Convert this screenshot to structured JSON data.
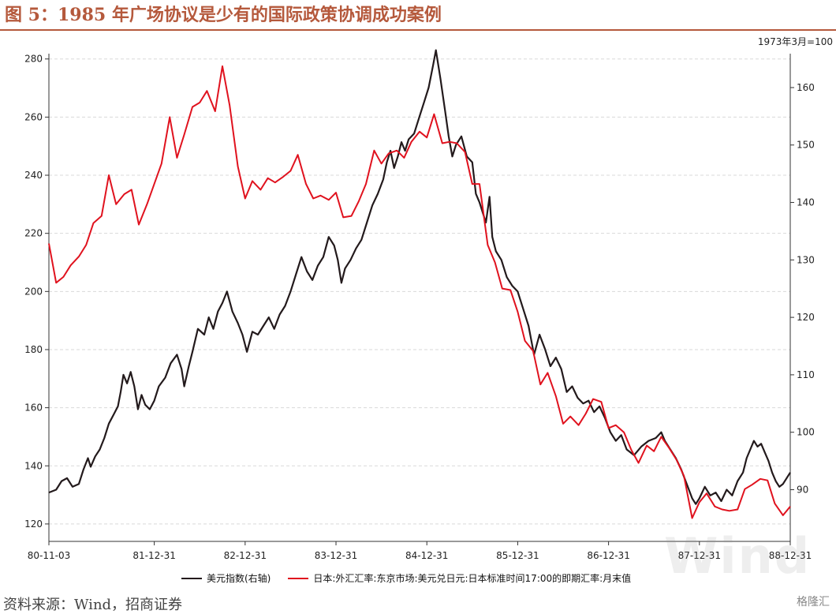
{
  "title": "图 5：1985 年广场协议是少有的国际政策协调成功案例",
  "unit_note": "1973年3月=100",
  "source": "资料来源：Wind，招商证券",
  "watermark": "Wind",
  "watermark_bottom": "格隆汇",
  "colors": {
    "title": "#b5593c",
    "dxy": "#231a1c",
    "jpy": "#e0121e",
    "grid": "#d9d9d9"
  },
  "chart_data": {
    "type": "line",
    "x_ticks": [
      "80-11-03",
      "81-12-31",
      "82-12-31",
      "83-12-31",
      "84-12-31",
      "85-12-31",
      "86-12-31",
      "87-12-31",
      "88-12-31"
    ],
    "x_range": [
      1980.84,
      1989.0
    ],
    "y_left": {
      "ticks": [
        120,
        140,
        160,
        180,
        200,
        220,
        240,
        260,
        280
      ],
      "range": [
        114,
        284
      ]
    },
    "y_right": {
      "ticks": [
        90,
        100,
        110,
        120,
        130,
        140,
        150,
        160
      ],
      "range": [
        81,
        167
      ]
    },
    "grid": true,
    "legend_position": "bottom",
    "series": [
      {
        "name": "美元指数(右轴)",
        "axis": "right",
        "color": "#231a1c",
        "points": [
          [
            1980.84,
            89.5
          ],
          [
            1980.92,
            90.0
          ],
          [
            1980.98,
            91.5
          ],
          [
            1981.04,
            92.0
          ],
          [
            1981.1,
            90.5
          ],
          [
            1981.17,
            91.0
          ],
          [
            1981.22,
            93.5
          ],
          [
            1981.27,
            95.5
          ],
          [
            1981.3,
            94.0
          ],
          [
            1981.35,
            95.8
          ],
          [
            1981.4,
            97.0
          ],
          [
            1981.45,
            99.0
          ],
          [
            1981.5,
            101.5
          ],
          [
            1981.55,
            103.0
          ],
          [
            1981.6,
            104.5
          ],
          [
            1981.63,
            107.0
          ],
          [
            1981.66,
            110.0
          ],
          [
            1981.7,
            108.5
          ],
          [
            1981.74,
            110.5
          ],
          [
            1981.78,
            108.0
          ],
          [
            1981.82,
            104.0
          ],
          [
            1981.86,
            106.5
          ],
          [
            1981.9,
            104.8
          ],
          [
            1981.95,
            104.0
          ],
          [
            1982.0,
            105.5
          ],
          [
            1982.05,
            108.0
          ],
          [
            1982.12,
            109.5
          ],
          [
            1982.18,
            112.0
          ],
          [
            1982.25,
            113.5
          ],
          [
            1982.3,
            111.0
          ],
          [
            1982.33,
            108.0
          ],
          [
            1982.38,
            111.5
          ],
          [
            1982.42,
            114.0
          ],
          [
            1982.48,
            118.0
          ],
          [
            1982.55,
            117.0
          ],
          [
            1982.6,
            120.0
          ],
          [
            1982.65,
            118.0
          ],
          [
            1982.7,
            121.0
          ],
          [
            1982.75,
            122.5
          ],
          [
            1982.8,
            124.5
          ],
          [
            1982.86,
            121.0
          ],
          [
            1982.92,
            119.0
          ],
          [
            1982.97,
            117.0
          ],
          [
            1983.02,
            114.0
          ],
          [
            1983.08,
            117.5
          ],
          [
            1983.14,
            117.0
          ],
          [
            1983.2,
            118.5
          ],
          [
            1983.26,
            120.0
          ],
          [
            1983.32,
            118.0
          ],
          [
            1983.38,
            120.5
          ],
          [
            1983.44,
            122.0
          ],
          [
            1983.5,
            124.5
          ],
          [
            1983.56,
            127.5
          ],
          [
            1983.62,
            130.5
          ],
          [
            1983.68,
            128.0
          ],
          [
            1983.74,
            126.5
          ],
          [
            1983.8,
            129.0
          ],
          [
            1983.86,
            130.5
          ],
          [
            1983.92,
            134.0
          ],
          [
            1983.98,
            132.5
          ],
          [
            1984.02,
            130.0
          ],
          [
            1984.06,
            126.0
          ],
          [
            1984.1,
            128.5
          ],
          [
            1984.16,
            130.0
          ],
          [
            1984.22,
            132.0
          ],
          [
            1984.28,
            133.5
          ],
          [
            1984.34,
            136.5
          ],
          [
            1984.4,
            139.5
          ],
          [
            1984.46,
            141.5
          ],
          [
            1984.52,
            144.0
          ],
          [
            1984.56,
            147.0
          ],
          [
            1984.6,
            149.0
          ],
          [
            1984.64,
            146.0
          ],
          [
            1984.68,
            148.0
          ],
          [
            1984.72,
            150.5
          ],
          [
            1984.76,
            149.0
          ],
          [
            1984.8,
            151.0
          ],
          [
            1984.86,
            152.0
          ],
          [
            1984.92,
            155.0
          ],
          [
            1984.97,
            157.5
          ],
          [
            1985.02,
            160.0
          ],
          [
            1985.07,
            164.0
          ],
          [
            1985.1,
            166.5
          ],
          [
            1985.15,
            161.5
          ],
          [
            1985.2,
            156.0
          ],
          [
            1985.24,
            151.5
          ],
          [
            1985.28,
            148.0
          ],
          [
            1985.32,
            150.0
          ],
          [
            1985.38,
            151.5
          ],
          [
            1985.44,
            148.0
          ],
          [
            1985.5,
            147.0
          ],
          [
            1985.54,
            141.5
          ],
          [
            1985.58,
            140.0
          ],
          [
            1985.62,
            138.0
          ],
          [
            1985.65,
            136.5
          ],
          [
            1985.69,
            141.0
          ],
          [
            1985.72,
            134.0
          ],
          [
            1985.76,
            131.5
          ],
          [
            1985.82,
            130.0
          ],
          [
            1985.88,
            127.0
          ],
          [
            1985.94,
            125.5
          ],
          [
            1986.0,
            124.5
          ],
          [
            1986.06,
            121.5
          ],
          [
            1986.12,
            118.5
          ],
          [
            1986.18,
            113.5
          ],
          [
            1986.24,
            117.0
          ],
          [
            1986.3,
            114.5
          ],
          [
            1986.36,
            111.5
          ],
          [
            1986.42,
            113.0
          ],
          [
            1986.48,
            111.0
          ],
          [
            1986.54,
            107.0
          ],
          [
            1986.6,
            108.0
          ],
          [
            1986.66,
            106.0
          ],
          [
            1986.72,
            105.0
          ],
          [
            1986.78,
            105.5
          ],
          [
            1986.84,
            103.5
          ],
          [
            1986.9,
            104.5
          ],
          [
            1986.96,
            102.5
          ],
          [
            1987.02,
            100.0
          ],
          [
            1987.08,
            98.5
          ],
          [
            1987.14,
            99.5
          ],
          [
            1987.2,
            97.0
          ],
          [
            1987.28,
            96.0
          ],
          [
            1987.36,
            97.5
          ],
          [
            1987.44,
            98.5
          ],
          [
            1987.52,
            99.0
          ],
          [
            1987.58,
            100.0
          ],
          [
            1987.62,
            98.5
          ],
          [
            1987.68,
            97.0
          ],
          [
            1987.74,
            95.5
          ],
          [
            1987.8,
            93.5
          ],
          [
            1987.86,
            91.0
          ],
          [
            1987.92,
            88.5
          ],
          [
            1987.96,
            87.5
          ],
          [
            1988.0,
            88.5
          ],
          [
            1988.06,
            90.5
          ],
          [
            1988.12,
            89.0
          ],
          [
            1988.18,
            89.5
          ],
          [
            1988.24,
            88.0
          ],
          [
            1988.3,
            90.0
          ],
          [
            1988.36,
            89.0
          ],
          [
            1988.42,
            91.5
          ],
          [
            1988.48,
            93.0
          ],
          [
            1988.52,
            95.5
          ],
          [
            1988.56,
            97.0
          ],
          [
            1988.6,
            98.5
          ],
          [
            1988.64,
            97.5
          ],
          [
            1988.68,
            98.0
          ],
          [
            1988.72,
            96.5
          ],
          [
            1988.76,
            95.0
          ],
          [
            1988.8,
            93.0
          ],
          [
            1988.84,
            91.5
          ],
          [
            1988.88,
            90.5
          ],
          [
            1988.92,
            91.0
          ],
          [
            1988.96,
            92.0
          ],
          [
            1989.0,
            93.0
          ]
        ]
      },
      {
        "name": "日本:外汇汇率:东京市场:美元兑日元:日本标准时间17:00的即期汇率:月末值",
        "axis": "left",
        "color": "#e0121e",
        "points": [
          [
            1980.84,
            216.5
          ],
          [
            1980.92,
            203.0
          ],
          [
            1981.0,
            205.0
          ],
          [
            1981.08,
            209.0
          ],
          [
            1981.17,
            212.0
          ],
          [
            1981.25,
            216.0
          ],
          [
            1981.33,
            223.5
          ],
          [
            1981.42,
            226.0
          ],
          [
            1981.5,
            240.0
          ],
          [
            1981.58,
            230.0
          ],
          [
            1981.67,
            233.5
          ],
          [
            1981.75,
            235.0
          ],
          [
            1981.83,
            223.0
          ],
          [
            1981.92,
            230.0
          ],
          [
            1982.0,
            237.0
          ],
          [
            1982.08,
            244.0
          ],
          [
            1982.17,
            260.0
          ],
          [
            1982.25,
            246.0
          ],
          [
            1982.33,
            254.0
          ],
          [
            1982.42,
            263.5
          ],
          [
            1982.5,
            265.0
          ],
          [
            1982.58,
            269.0
          ],
          [
            1982.67,
            262.0
          ],
          [
            1982.75,
            277.5
          ],
          [
            1982.83,
            264.0
          ],
          [
            1982.92,
            243.0
          ],
          [
            1983.0,
            232.0
          ],
          [
            1983.08,
            238.0
          ],
          [
            1983.17,
            235.0
          ],
          [
            1983.25,
            239.0
          ],
          [
            1983.33,
            237.5
          ],
          [
            1983.42,
            239.5
          ],
          [
            1983.5,
            241.5
          ],
          [
            1983.58,
            247.0
          ],
          [
            1983.67,
            237.0
          ],
          [
            1983.75,
            232.0
          ],
          [
            1983.83,
            233.0
          ],
          [
            1983.92,
            231.5
          ],
          [
            1984.0,
            234.0
          ],
          [
            1984.08,
            225.5
          ],
          [
            1984.17,
            226.0
          ],
          [
            1984.25,
            231.0
          ],
          [
            1984.33,
            237.0
          ],
          [
            1984.42,
            248.5
          ],
          [
            1984.5,
            244.0
          ],
          [
            1984.58,
            247.5
          ],
          [
            1984.67,
            248.5
          ],
          [
            1984.75,
            246.0
          ],
          [
            1984.83,
            251.5
          ],
          [
            1984.92,
            255.0
          ],
          [
            1985.0,
            253.0
          ],
          [
            1985.08,
            261.0
          ],
          [
            1985.17,
            251.0
          ],
          [
            1985.25,
            251.5
          ],
          [
            1985.33,
            251.0
          ],
          [
            1985.42,
            248.0
          ],
          [
            1985.5,
            237.0
          ],
          [
            1985.58,
            237.0
          ],
          [
            1985.67,
            216.0
          ],
          [
            1985.75,
            210.0
          ],
          [
            1985.83,
            201.0
          ],
          [
            1985.92,
            200.5
          ],
          [
            1986.0,
            193.0
          ],
          [
            1986.08,
            183.0
          ],
          [
            1986.17,
            179.5
          ],
          [
            1986.25,
            168.0
          ],
          [
            1986.33,
            172.0
          ],
          [
            1986.42,
            164.0
          ],
          [
            1986.5,
            154.5
          ],
          [
            1986.58,
            157.0
          ],
          [
            1986.67,
            154.0
          ],
          [
            1986.75,
            158.0
          ],
          [
            1986.83,
            163.0
          ],
          [
            1986.92,
            162.0
          ],
          [
            1987.0,
            153.0
          ],
          [
            1987.08,
            154.0
          ],
          [
            1987.17,
            151.5
          ],
          [
            1987.25,
            145.5
          ],
          [
            1987.33,
            141.0
          ],
          [
            1987.42,
            147.0
          ],
          [
            1987.5,
            145.0
          ],
          [
            1987.58,
            150.0
          ],
          [
            1987.67,
            146.0
          ],
          [
            1987.75,
            142.0
          ],
          [
            1987.83,
            136.5
          ],
          [
            1987.92,
            122.0
          ],
          [
            1988.0,
            127.5
          ],
          [
            1988.08,
            130.5
          ],
          [
            1988.17,
            126.0
          ],
          [
            1988.25,
            125.0
          ],
          [
            1988.33,
            124.5
          ],
          [
            1988.42,
            125.0
          ],
          [
            1988.5,
            132.0
          ],
          [
            1988.58,
            133.5
          ],
          [
            1988.67,
            135.5
          ],
          [
            1988.75,
            135.0
          ],
          [
            1988.83,
            127.0
          ],
          [
            1988.92,
            123.0
          ],
          [
            1989.0,
            126.0
          ]
        ]
      }
    ]
  }
}
